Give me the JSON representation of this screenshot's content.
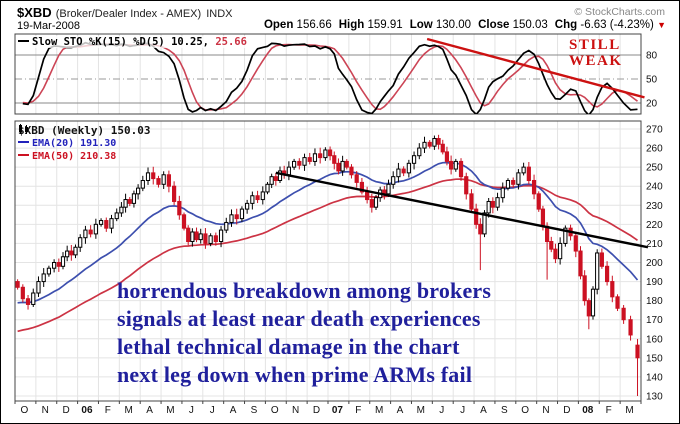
{
  "header": {
    "symbol": "$XBD",
    "index_name": "(Broker/Dealer Index - AMEX)",
    "exchange": "INDX",
    "copyright": "© StockCharts.com",
    "date": "19-Mar-2008",
    "quote": {
      "open_label": "Open",
      "open_value": "156.66",
      "high_label": "High",
      "high_value": "159.91",
      "low_label": "Low",
      "low_value": "130.00",
      "close_label": "Close",
      "close_value": "150.03",
      "chg_label": "Chg",
      "chg_value": "-6.63 (-4.23%)",
      "direction_arrow": "▼"
    }
  },
  "stoch_panel": {
    "legend_main": "Slow STO %K(15) %D(5) 10.25,",
    "legend_d_value": "25.66",
    "annotation_line1": "STILL",
    "annotation_line2": "WEAK"
  },
  "main_panel": {
    "legend_symbol": "$XBD (Weekly) 150.03",
    "legend_ema20": "EMA(20) 191.30",
    "legend_ema50": "EMA(50) 210.38",
    "annotation_line1": "horrendous breakdown among brokers",
    "annotation_line2": "signals at least near death experiences",
    "annotation_line3": "lethal technical damage in the chart",
    "annotation_line4": "next leg down when prime ARMs fail"
  },
  "chart_data": {
    "type": "candlestick",
    "title": "$XBD (Broker/Dealer Index - AMEX) INDX",
    "period": "Weekly",
    "date": "19-Mar-2008",
    "last_quote": {
      "open": 156.66,
      "high": 159.91,
      "low": 130.0,
      "close": 150.03,
      "change": -6.63,
      "change_pct": -4.23
    },
    "x_labels": [
      "O",
      "N",
      "D",
      "06",
      "F",
      "M",
      "A",
      "M",
      "J",
      "J",
      "A",
      "S",
      "O",
      "N",
      "D",
      "07",
      "F",
      "M",
      "A",
      "M",
      "J",
      "J",
      "A",
      "S",
      "O",
      "N",
      "D",
      "08",
      "F",
      "M"
    ],
    "weeks_per_month": [
      4,
      4,
      5,
      4,
      4,
      5,
      4,
      4,
      5,
      4,
      4,
      4,
      5,
      4,
      4,
      5,
      4,
      5,
      4,
      4,
      5,
      4,
      5,
      4,
      4,
      5,
      4,
      5,
      4,
      3
    ],
    "weekly_closes": [
      187,
      181,
      178,
      184,
      190,
      194,
      197,
      200,
      198,
      203,
      206,
      204,
      208,
      213,
      217,
      215,
      220,
      222,
      218,
      223,
      226,
      229,
      233,
      231,
      236,
      239,
      243,
      247,
      244,
      241,
      246,
      240,
      232,
      225,
      218,
      211,
      216,
      212,
      215,
      210,
      214,
      211,
      217,
      221,
      225,
      223,
      228,
      231,
      235,
      233,
      237,
      241,
      245,
      243,
      248,
      246,
      250,
      253,
      251,
      255,
      253,
      257,
      255,
      259,
      256,
      252,
      248,
      253,
      250,
      246,
      242,
      237,
      233,
      229,
      234,
      238,
      236,
      241,
      245,
      249,
      247,
      252,
      256,
      260,
      263,
      261,
      265,
      262,
      258,
      253,
      249,
      253,
      245,
      236,
      228,
      220,
      215,
      226,
      232,
      229,
      234,
      239,
      243,
      241,
      247,
      250,
      243,
      236,
      228,
      219,
      211,
      207,
      202,
      210,
      218,
      214,
      206,
      193,
      180,
      172,
      186,
      205,
      198,
      190,
      182,
      176,
      170,
      162,
      150.03
    ],
    "wick_overrides": {
      "96": {
        "low": 196
      },
      "110": {
        "low": 191
      },
      "119": {
        "low": 165
      },
      "128": {
        "open": 156.66,
        "high": 159.91,
        "low": 130,
        "close": 150.03
      }
    },
    "price_axis": {
      "min": 130,
      "max": 270,
      "step": 10,
      "ticks": [
        270,
        260,
        250,
        240,
        230,
        220,
        210,
        200,
        190,
        180,
        170,
        160,
        150,
        140,
        130
      ]
    },
    "overlays": [
      {
        "name": "EMA(20)",
        "period": 20,
        "start_value": 178,
        "last_value": 191.3,
        "color": "#3d4fae"
      },
      {
        "name": "EMA(50)",
        "period": 50,
        "start_value": 163,
        "last_value": 210.38,
        "color": "#cc3344"
      }
    ],
    "indicator": {
      "name": "Slow STO",
      "k_period": 15,
      "d_period": 5,
      "k_value": 10.25,
      "d_value": 25.66,
      "ticks": [
        80,
        50,
        20
      ],
      "range": [
        0,
        100
      ],
      "k_color": "#000000",
      "d_color": "#cc4455"
    },
    "trendlines": [
      {
        "panel": "price",
        "from": {
          "week": 53.5,
          "price": 247
        },
        "to": {
          "week": 130,
          "price": 208
        },
        "color": "#000000",
        "width": 2.4
      },
      {
        "panel": "stoch",
        "from": {
          "week": 85,
          "value": 100
        },
        "to": {
          "week": 129.5,
          "value": 27
        },
        "color": "#cc1111",
        "width": 2.4
      }
    ],
    "candle_colors": {
      "up_fill": "#ffffff",
      "up_stroke": "#000000",
      "down_fill": "#cc1122",
      "down_stroke": "#cc1122"
    },
    "grid": true,
    "legend_position": "top-left"
  }
}
